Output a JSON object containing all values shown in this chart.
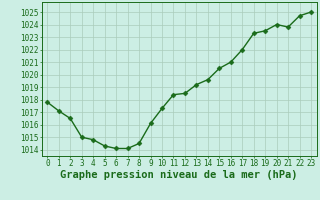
{
  "hours": [
    0,
    1,
    2,
    3,
    4,
    5,
    6,
    7,
    8,
    9,
    10,
    11,
    12,
    13,
    14,
    15,
    16,
    17,
    18,
    19,
    20,
    21,
    22,
    23
  ],
  "pressure": [
    1017.8,
    1017.1,
    1016.5,
    1015.0,
    1014.8,
    1014.3,
    1014.1,
    1014.1,
    1014.5,
    1016.1,
    1017.3,
    1018.4,
    1018.5,
    1019.2,
    1019.6,
    1020.5,
    1021.0,
    1022.0,
    1023.3,
    1023.5,
    1024.0,
    1023.8,
    1024.7,
    1025.0
  ],
  "line_color": "#1a6b1a",
  "marker": "D",
  "marker_size": 2.5,
  "background_color": "#cceee4",
  "grid_color": "#aaccbb",
  "xlabel": "Graphe pression niveau de la mer (hPa)",
  "ylim": [
    1013.5,
    1025.8
  ],
  "yticks": [
    1014,
    1015,
    1016,
    1017,
    1018,
    1019,
    1020,
    1021,
    1022,
    1023,
    1024,
    1025
  ],
  "xlim": [
    -0.5,
    23.5
  ],
  "xticks": [
    0,
    1,
    2,
    3,
    4,
    5,
    6,
    7,
    8,
    9,
    10,
    11,
    12,
    13,
    14,
    15,
    16,
    17,
    18,
    19,
    20,
    21,
    22,
    23
  ],
  "tick_fontsize": 5.5,
  "label_fontsize": 7.5,
  "line_width": 1.0
}
